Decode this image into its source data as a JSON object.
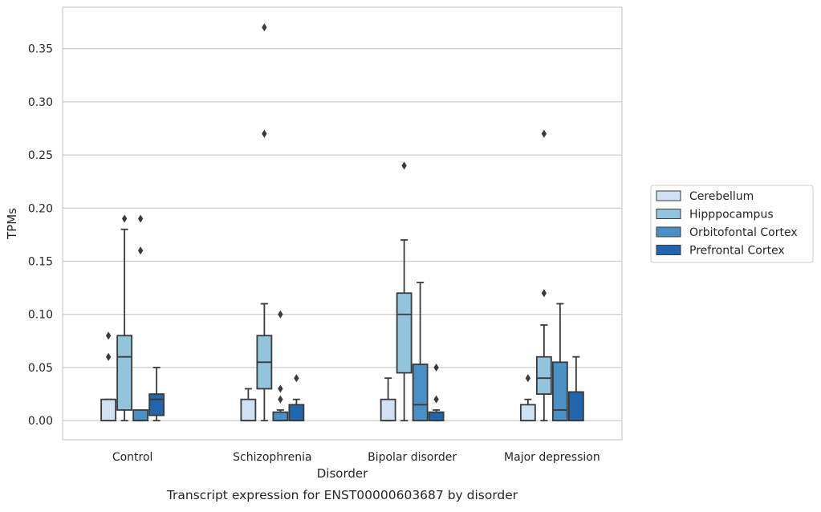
{
  "chart_data": {
    "type": "box",
    "title": "Transcript expression for ENST00000603687 by disorder",
    "xlabel": "Disorder",
    "ylabel": "TPMs",
    "ylim": [
      -0.018,
      0.389
    ],
    "yticks": [
      0.0,
      0.05,
      0.1,
      0.15,
      0.2,
      0.25,
      0.3,
      0.35
    ],
    "ytick_labels": [
      "0.00",
      "0.05",
      "0.10",
      "0.15",
      "0.20",
      "0.25",
      "0.30",
      "0.35"
    ],
    "grid": "horizontal",
    "legend_position": "right",
    "categories": [
      "Control",
      "Schizophrenia",
      "Bipolar disorder",
      "Major depression"
    ],
    "series": [
      {
        "name": "Cerebellum",
        "color": "#cfe1f2",
        "boxes": [
          {
            "min": 0.0,
            "q1": 0.0,
            "median": 0.0,
            "q3": 0.02,
            "max": 0.02,
            "outliers": [
              0.06,
              0.08
            ]
          },
          {
            "min": 0.0,
            "q1": 0.0,
            "median": 0.0,
            "q3": 0.02,
            "max": 0.03,
            "outliers": []
          },
          {
            "min": 0.0,
            "q1": 0.0,
            "median": 0.0,
            "q3": 0.02,
            "max": 0.04,
            "outliers": []
          },
          {
            "min": 0.0,
            "q1": 0.0,
            "median": 0.0,
            "q3": 0.015,
            "max": 0.02,
            "outliers": [
              0.04
            ]
          }
        ]
      },
      {
        "name": "Hipppocampus",
        "color": "#93c4de",
        "boxes": [
          {
            "min": 0.0,
            "q1": 0.01,
            "median": 0.06,
            "q3": 0.08,
            "max": 0.18,
            "outliers": [
              0.19
            ]
          },
          {
            "min": 0.0,
            "q1": 0.03,
            "median": 0.055,
            "q3": 0.08,
            "max": 0.11,
            "outliers": [
              0.27,
              0.37
            ]
          },
          {
            "min": 0.0,
            "q1": 0.045,
            "median": 0.1,
            "q3": 0.12,
            "max": 0.17,
            "outliers": [
              0.24
            ]
          },
          {
            "min": 0.0,
            "q1": 0.025,
            "median": 0.04,
            "q3": 0.06,
            "max": 0.09,
            "outliers": [
              0.12,
              0.27
            ]
          }
        ]
      },
      {
        "name": "Orbitofontal Cortex",
        "color": "#4a90c4",
        "boxes": [
          {
            "min": 0.0,
            "q1": 0.0,
            "median": 0.0,
            "q3": 0.01,
            "max": 0.01,
            "outliers": [
              0.16,
              0.19
            ]
          },
          {
            "min": 0.0,
            "q1": 0.0,
            "median": 0.0,
            "q3": 0.008,
            "max": 0.01,
            "outliers": [
              0.02,
              0.03,
              0.1
            ]
          },
          {
            "min": 0.0,
            "q1": 0.0,
            "median": 0.015,
            "q3": 0.053,
            "max": 0.13,
            "outliers": []
          },
          {
            "min": 0.0,
            "q1": 0.0,
            "median": 0.01,
            "q3": 0.055,
            "max": 0.11,
            "outliers": []
          }
        ]
      },
      {
        "name": "Prefrontal Cortex",
        "color": "#2166ac",
        "boxes": [
          {
            "min": 0.0,
            "q1": 0.005,
            "median": 0.02,
            "q3": 0.025,
            "max": 0.05,
            "outliers": []
          },
          {
            "min": 0.0,
            "q1": 0.0,
            "median": 0.0,
            "q3": 0.015,
            "max": 0.02,
            "outliers": [
              0.04
            ]
          },
          {
            "min": 0.0,
            "q1": 0.0,
            "median": 0.0,
            "q3": 0.008,
            "max": 0.01,
            "outliers": [
              0.02,
              0.05
            ]
          },
          {
            "min": 0.0,
            "q1": 0.0,
            "median": 0.0,
            "q3": 0.027,
            "max": 0.06,
            "outliers": []
          }
        ]
      }
    ]
  }
}
